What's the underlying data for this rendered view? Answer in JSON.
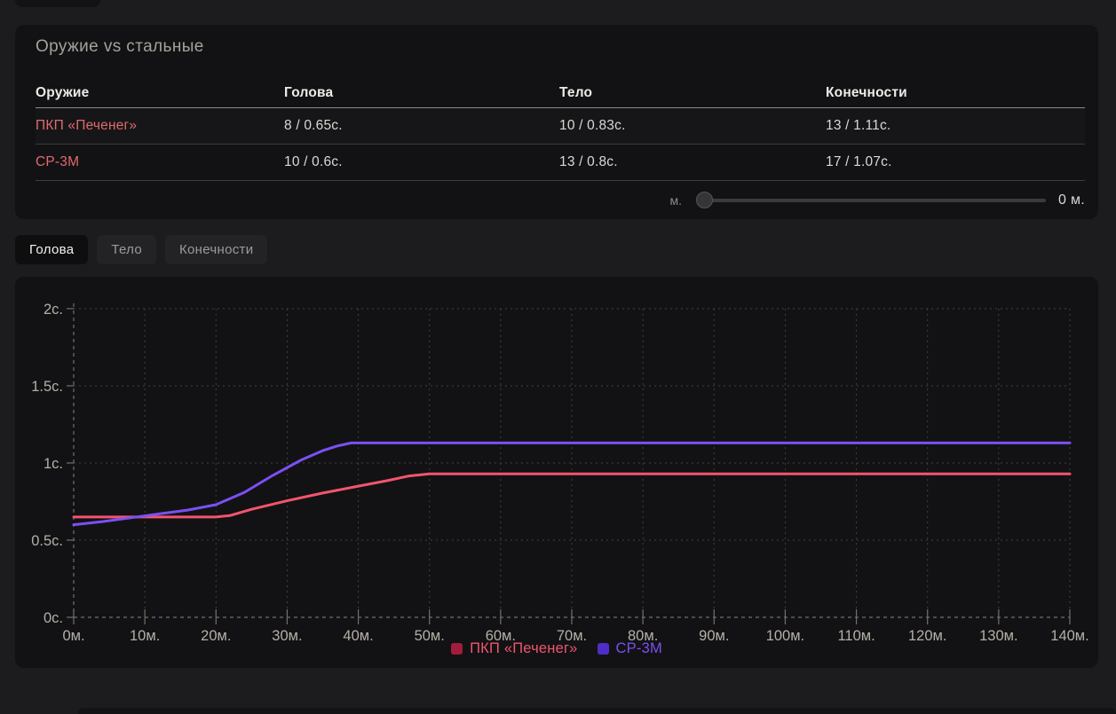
{
  "panel1": {
    "title": "Оружие vs стальные",
    "table": {
      "columns": [
        "Оружие",
        "Голова",
        "Тело",
        "Конечности"
      ],
      "rows": [
        {
          "name": "ПКП «Печенег»",
          "values": [
            "8 / 0.65с.",
            "10 / 0.83с.",
            "13 / 1.11с."
          ]
        },
        {
          "name": "СР-3М",
          "values": [
            "10 / 0.6с.",
            "13 / 0.8с.",
            "17 / 1.07с."
          ]
        }
      ]
    },
    "slider": {
      "left_label": "м.",
      "right_label": "0 м.",
      "value_percent": 0
    }
  },
  "tabs": [
    {
      "label": "Голова",
      "active": true
    },
    {
      "label": "Тело",
      "active": false
    },
    {
      "label": "Конечности",
      "active": false
    }
  ],
  "chart_data": {
    "type": "line",
    "title": "",
    "xlabel": "",
    "ylabel": "",
    "xlim": [
      0,
      140
    ],
    "ylim": [
      0,
      2
    ],
    "grid": "dotted",
    "legend_position": "bottom",
    "x_ticks": [
      {
        "v": 0,
        "label": "0м."
      },
      {
        "v": 10,
        "label": "10м."
      },
      {
        "v": 20,
        "label": "20м."
      },
      {
        "v": 30,
        "label": "30м."
      },
      {
        "v": 40,
        "label": "40м."
      },
      {
        "v": 50,
        "label": "50м."
      },
      {
        "v": 60,
        "label": "60м."
      },
      {
        "v": 70,
        "label": "70м."
      },
      {
        "v": 80,
        "label": "80м."
      },
      {
        "v": 90,
        "label": "90м."
      },
      {
        "v": 100,
        "label": "100м."
      },
      {
        "v": 110,
        "label": "110м."
      },
      {
        "v": 120,
        "label": "120м."
      },
      {
        "v": 130,
        "label": "130м."
      },
      {
        "v": 140,
        "label": "140м."
      }
    ],
    "y_ticks": [
      {
        "v": 0,
        "label": "0с."
      },
      {
        "v": 0.5,
        "label": "0.5с."
      },
      {
        "v": 1,
        "label": "1с."
      },
      {
        "v": 1.5,
        "label": "1.5с."
      },
      {
        "v": 2,
        "label": "2с."
      }
    ],
    "series": [
      {
        "name": "ПКП «Печенег»",
        "color": "#f2556e",
        "marker_color": "#a11d3b",
        "points": [
          [
            0,
            0.65
          ],
          [
            5,
            0.65
          ],
          [
            10,
            0.65
          ],
          [
            15,
            0.65
          ],
          [
            20,
            0.65
          ],
          [
            22,
            0.66
          ],
          [
            25,
            0.7
          ],
          [
            30,
            0.755
          ],
          [
            35,
            0.805
          ],
          [
            40,
            0.85
          ],
          [
            44,
            0.885
          ],
          [
            47,
            0.915
          ],
          [
            50,
            0.93
          ],
          [
            70,
            0.93
          ],
          [
            100,
            0.93
          ],
          [
            140,
            0.93
          ]
        ]
      },
      {
        "name": "СР-3М",
        "color": "#7b50f2",
        "marker_color": "#4f2dc8",
        "points": [
          [
            0,
            0.6
          ],
          [
            4,
            0.62
          ],
          [
            8,
            0.645
          ],
          [
            12,
            0.67
          ],
          [
            16,
            0.695
          ],
          [
            20,
            0.73
          ],
          [
            24,
            0.81
          ],
          [
            28,
            0.92
          ],
          [
            32,
            1.02
          ],
          [
            35,
            1.08
          ],
          [
            37,
            1.11
          ],
          [
            39,
            1.13
          ],
          [
            45,
            1.13
          ],
          [
            70,
            1.13
          ],
          [
            100,
            1.13
          ],
          [
            140,
            1.13
          ]
        ]
      }
    ]
  }
}
